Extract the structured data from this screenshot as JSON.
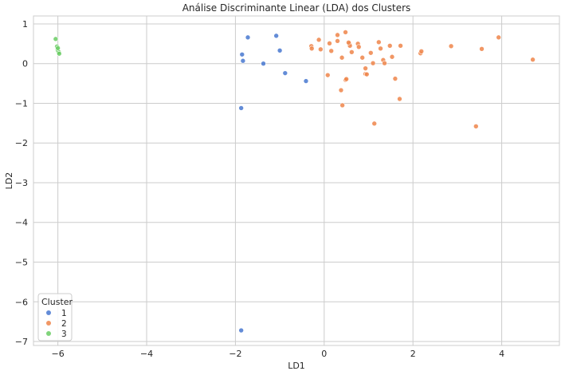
{
  "chart_data": {
    "type": "scatter",
    "title": "Análise Discriminante Linear (LDA) dos Clusters",
    "xlabel": "LD1",
    "ylabel": "LD2",
    "xlim": [
      -6.55,
      5.3
    ],
    "ylim": [
      -7.1,
      1.2
    ],
    "xticks": [
      -6,
      -4,
      -2,
      0,
      2,
      4
    ],
    "yticks": [
      1,
      0,
      -1,
      -2,
      -3,
      -4,
      -5,
      -6,
      -7
    ],
    "xtick_labels": [
      "−6",
      "−4",
      "−2",
      "0",
      "2",
      "4"
    ],
    "ytick_labels": [
      "1",
      "0",
      "−1",
      "−2",
      "−3",
      "−4",
      "−5",
      "−6",
      "−7"
    ],
    "grid": true,
    "legend": {
      "title": "Cluster",
      "placement": "lower-left",
      "entries": [
        "1",
        "2",
        "3"
      ]
    },
    "series": [
      {
        "name": "1",
        "color": "#4878d0",
        "points": [
          [
            -1.72,
            0.66
          ],
          [
            -1.85,
            0.23
          ],
          [
            -1.83,
            0.07
          ],
          [
            -1.08,
            0.7
          ],
          [
            -1.0,
            0.33
          ],
          [
            -1.37,
            0.0
          ],
          [
            -0.88,
            -0.24
          ],
          [
            -0.41,
            -0.44
          ],
          [
            -1.87,
            -1.12
          ],
          [
            -1.87,
            -6.72
          ]
        ]
      },
      {
        "name": "2",
        "color": "#ee854a",
        "points": [
          [
            -0.12,
            0.6
          ],
          [
            -0.29,
            0.44
          ],
          [
            -0.28,
            0.38
          ],
          [
            -0.08,
            0.36
          ],
          [
            0.12,
            0.51
          ],
          [
            0.16,
            0.32
          ],
          [
            0.3,
            0.72
          ],
          [
            0.3,
            0.57
          ],
          [
            0.48,
            0.79
          ],
          [
            0.57,
            0.5
          ],
          [
            0.58,
            0.45
          ],
          [
            0.55,
            0.53
          ],
          [
            0.62,
            0.29
          ],
          [
            0.76,
            0.5
          ],
          [
            0.78,
            0.42
          ],
          [
            0.86,
            0.15
          ],
          [
            0.93,
            -0.12
          ],
          [
            0.93,
            -0.26
          ],
          [
            0.96,
            -0.27
          ],
          [
            1.05,
            0.27
          ],
          [
            1.1,
            0.01
          ],
          [
            1.23,
            0.54
          ],
          [
            1.27,
            0.38
          ],
          [
            1.33,
            0.09
          ],
          [
            1.36,
            0.01
          ],
          [
            1.48,
            0.45
          ],
          [
            1.53,
            0.17
          ],
          [
            1.6,
            -0.38
          ],
          [
            1.7,
            -0.89
          ],
          [
            1.72,
            0.45
          ],
          [
            0.08,
            -0.29
          ],
          [
            0.48,
            -0.41
          ],
          [
            0.5,
            -0.39
          ],
          [
            0.38,
            -0.67
          ],
          [
            0.41,
            -1.05
          ],
          [
            1.13,
            -1.51
          ],
          [
            2.17,
            0.26
          ],
          [
            2.19,
            0.31
          ],
          [
            2.86,
            0.44
          ],
          [
            3.42,
            -1.58
          ],
          [
            3.55,
            0.37
          ],
          [
            3.93,
            0.66
          ],
          [
            4.7,
            0.1
          ],
          [
            0.4,
            0.15
          ]
        ]
      },
      {
        "name": "3",
        "color": "#6acc64",
        "points": [
          [
            -6.05,
            0.62
          ],
          [
            -6.02,
            0.43
          ],
          [
            -6.01,
            0.36
          ],
          [
            -6.0,
            0.32
          ],
          [
            -5.98,
            0.29
          ],
          [
            -5.97,
            0.25
          ],
          [
            -6.0,
            0.39
          ]
        ]
      }
    ]
  }
}
